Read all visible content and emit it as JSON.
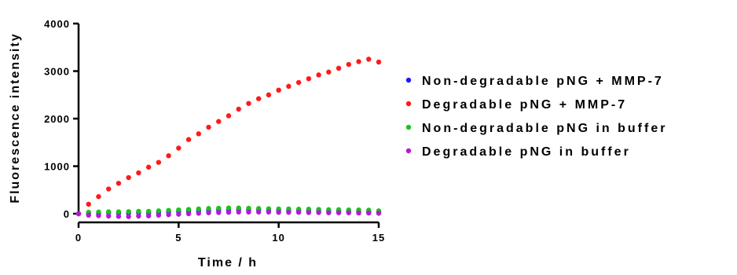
{
  "chart_data": {
    "type": "scatter",
    "xlabel": "Time / h",
    "ylabel": "Fluorescence intensity",
    "xlim": [
      0,
      15
    ],
    "ylim": [
      0,
      4000
    ],
    "xticks": [
      0,
      5,
      10,
      15
    ],
    "yticks": [
      0,
      1000,
      2000,
      3000,
      4000
    ],
    "xtick_labels": [
      "0",
      "5",
      "10",
      "15"
    ],
    "ytick_labels": [
      "0",
      "1000",
      "2000",
      "3000",
      "4000"
    ],
    "grid": false,
    "legend_position": "right",
    "x": [
      0,
      0.5,
      1,
      1.5,
      2,
      2.5,
      3,
      3.5,
      4,
      4.5,
      5,
      5.5,
      6,
      6.5,
      7,
      7.5,
      8,
      8.5,
      9,
      9.5,
      10,
      10.5,
      11,
      11.5,
      12,
      12.5,
      13,
      13.5,
      14,
      14.5,
      15
    ],
    "series": [
      {
        "name": "Non-degradable pNG + MMP-7",
        "color": "#1a1aff",
        "values": [
          0,
          10,
          5,
          20,
          15,
          10,
          20,
          15,
          25,
          40,
          45,
          55,
          60,
          70,
          75,
          80,
          85,
          80,
          80,
          75,
          75,
          70,
          70,
          65,
          60,
          55,
          55,
          50,
          45,
          40,
          30
        ]
      },
      {
        "name": "Degradable pNG + MMP-7",
        "color": "#ff1a1a",
        "values": [
          0,
          200,
          360,
          520,
          640,
          760,
          860,
          980,
          1080,
          1220,
          1380,
          1560,
          1680,
          1820,
          1940,
          2060,
          2200,
          2320,
          2420,
          2500,
          2600,
          2680,
          2760,
          2840,
          2920,
          2980,
          3060,
          3140,
          3200,
          3250,
          3190
        ]
      },
      {
        "name": "Non-degradable pNG in buffer",
        "color": "#1ac41a",
        "values": [
          0,
          30,
          35,
          40,
          40,
          45,
          50,
          50,
          60,
          70,
          80,
          90,
          100,
          110,
          115,
          120,
          120,
          115,
          110,
          105,
          100,
          100,
          95,
          95,
          90,
          85,
          85,
          80,
          80,
          75,
          60
        ]
      },
      {
        "name": "Degradable pNG in buffer",
        "color": "#b41ad4",
        "values": [
          0,
          -30,
          -40,
          -50,
          -55,
          -60,
          -50,
          -45,
          -30,
          -20,
          -10,
          0,
          10,
          20,
          25,
          30,
          35,
          35,
          35,
          35,
          30,
          30,
          30,
          25,
          25,
          20,
          20,
          20,
          15,
          15,
          10
        ]
      }
    ]
  }
}
